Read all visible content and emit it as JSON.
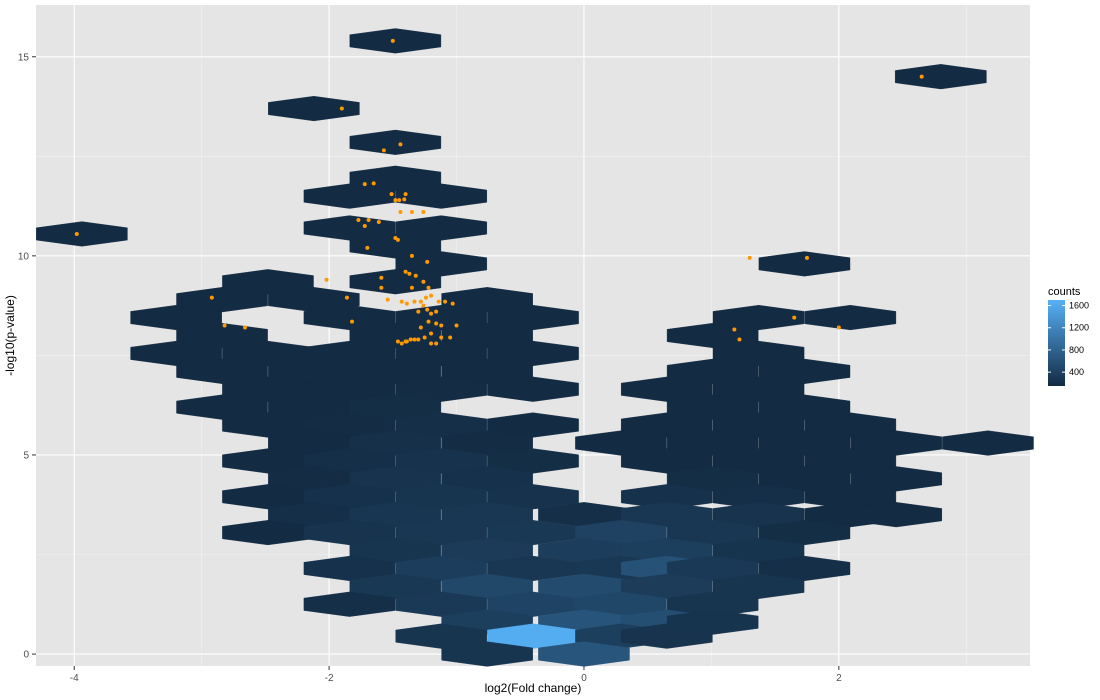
{
  "chart_data": {
    "type": "hexbin-scatter",
    "title": "",
    "xlabel": "log2(Fold change)",
    "ylabel": "-log10(p-value)",
    "xlim": [
      -4.3,
      3.5
    ],
    "ylim": [
      -0.3,
      16.3
    ],
    "x_ticks": [
      -4,
      -2,
      0,
      2
    ],
    "x_tick_labels": [
      "-4",
      "-2",
      "0",
      "2"
    ],
    "y_ticks": [
      0,
      5,
      10,
      15
    ],
    "y_tick_labels": [
      "0",
      "5",
      "10",
      "15"
    ],
    "hex_width": 0.715,
    "hex_height": 0.62,
    "grid": true,
    "background_color": "#e5e5e5",
    "legend": {
      "title": "counts",
      "position": "right",
      "range": [
        150,
        1700
      ],
      "breaks": [
        400,
        800,
        1200,
        1600
      ],
      "break_labels": [
        "400",
        "800",
        "1200",
        "1600"
      ],
      "color_low": "#132b43",
      "color_high": "#56b1f7"
    },
    "points_color": "#ff9900",
    "hexes": [
      {
        "x": -1.48,
        "y": 15.4,
        "count": 1
      },
      {
        "x": 2.8,
        "y": 14.5,
        "count": 1
      },
      {
        "x": -2.12,
        "y": 13.7,
        "count": 1
      },
      {
        "x": -1.48,
        "y": 12.85,
        "count": 3
      },
      {
        "x": -1.48,
        "y": 11.95,
        "count": 4
      },
      {
        "x": -1.84,
        "y": 11.5,
        "count": 8
      },
      {
        "x": -1.12,
        "y": 11.5,
        "count": 9
      },
      {
        "x": -1.84,
        "y": 10.7,
        "count": 7
      },
      {
        "x": -1.12,
        "y": 10.7,
        "count": 5
      },
      {
        "x": -3.94,
        "y": 10.55,
        "count": 1
      },
      {
        "x": -1.48,
        "y": 10.25,
        "count": 6
      },
      {
        "x": -1.12,
        "y": 9.8,
        "count": 10
      },
      {
        "x": 1.73,
        "y": 9.8,
        "count": 2
      },
      {
        "x": -2.48,
        "y": 9.35,
        "count": 5
      },
      {
        "x": -1.48,
        "y": 9.35,
        "count": 25
      },
      {
        "x": -2.84,
        "y": 8.9,
        "count": 4
      },
      {
        "x": -2.12,
        "y": 8.9,
        "count": 10
      },
      {
        "x": -0.76,
        "y": 8.9,
        "count": 18
      },
      {
        "x": -3.2,
        "y": 8.45,
        "count": 8
      },
      {
        "x": -1.84,
        "y": 8.45,
        "count": 30
      },
      {
        "x": -1.12,
        "y": 8.45,
        "count": 40
      },
      {
        "x": -0.4,
        "y": 8.45,
        "count": 15
      },
      {
        "x": 1.37,
        "y": 8.45,
        "count": 6
      },
      {
        "x": 2.09,
        "y": 8.45,
        "count": 4
      },
      {
        "x": -2.84,
        "y": 8.0,
        "count": 20
      },
      {
        "x": -1.48,
        "y": 8.0,
        "count": 60
      },
      {
        "x": -0.76,
        "y": 8.0,
        "count": 50
      },
      {
        "x": 1.01,
        "y": 8.0,
        "count": 12
      },
      {
        "x": -3.2,
        "y": 7.55,
        "count": 30
      },
      {
        "x": -2.48,
        "y": 7.55,
        "count": 60
      },
      {
        "x": -1.84,
        "y": 7.55,
        "count": 100
      },
      {
        "x": -1.12,
        "y": 7.55,
        "count": 110
      },
      {
        "x": -0.4,
        "y": 7.55,
        "count": 80
      },
      {
        "x": 1.37,
        "y": 7.55,
        "count": 30
      },
      {
        "x": -2.84,
        "y": 7.1,
        "count": 80
      },
      {
        "x": -2.12,
        "y": 7.1,
        "count": 120
      },
      {
        "x": -1.48,
        "y": 7.1,
        "count": 150
      },
      {
        "x": -0.76,
        "y": 7.1,
        "count": 110
      },
      {
        "x": 1.01,
        "y": 7.1,
        "count": 40
      },
      {
        "x": 1.73,
        "y": 7.1,
        "count": 30
      },
      {
        "x": -2.48,
        "y": 6.65,
        "count": 90
      },
      {
        "x": -1.84,
        "y": 6.65,
        "count": 150
      },
      {
        "x": -1.12,
        "y": 6.65,
        "count": 170
      },
      {
        "x": -0.4,
        "y": 6.65,
        "count": 100
      },
      {
        "x": 0.65,
        "y": 6.65,
        "count": 60
      },
      {
        "x": 1.37,
        "y": 6.65,
        "count": 70
      },
      {
        "x": -2.84,
        "y": 6.2,
        "count": 60
      },
      {
        "x": -2.12,
        "y": 6.2,
        "count": 130
      },
      {
        "x": -1.48,
        "y": 6.2,
        "count": 180
      },
      {
        "x": 1.01,
        "y": 6.2,
        "count": 80
      },
      {
        "x": 1.73,
        "y": 6.2,
        "count": 60
      },
      {
        "x": -2.48,
        "y": 5.75,
        "count": 100
      },
      {
        "x": -1.84,
        "y": 5.75,
        "count": 170
      },
      {
        "x": -1.12,
        "y": 5.75,
        "count": 200
      },
      {
        "x": -0.4,
        "y": 5.75,
        "count": 120
      },
      {
        "x": 0.65,
        "y": 5.75,
        "count": 80
      },
      {
        "x": 1.37,
        "y": 5.75,
        "count": 100
      },
      {
        "x": 2.09,
        "y": 5.75,
        "count": 50
      },
      {
        "x": -2.12,
        "y": 5.3,
        "count": 140
      },
      {
        "x": -1.48,
        "y": 5.3,
        "count": 210
      },
      {
        "x": -0.76,
        "y": 5.3,
        "count": 170
      },
      {
        "x": 0.29,
        "y": 5.3,
        "count": 60
      },
      {
        "x": 1.01,
        "y": 5.3,
        "count": 120
      },
      {
        "x": 1.73,
        "y": 5.3,
        "count": 90
      },
      {
        "x": 2.45,
        "y": 5.3,
        "count": 40
      },
      {
        "x": 3.17,
        "y": 5.3,
        "count": 20
      },
      {
        "x": -2.48,
        "y": 4.85,
        "count": 120
      },
      {
        "x": -1.84,
        "y": 4.85,
        "count": 200
      },
      {
        "x": -1.12,
        "y": 4.85,
        "count": 230
      },
      {
        "x": -0.4,
        "y": 4.85,
        "count": 180
      },
      {
        "x": 0.65,
        "y": 4.85,
        "count": 140
      },
      {
        "x": 1.37,
        "y": 4.85,
        "count": 150
      },
      {
        "x": 2.09,
        "y": 4.85,
        "count": 80
      },
      {
        "x": -2.12,
        "y": 4.4,
        "count": 170
      },
      {
        "x": -1.48,
        "y": 4.4,
        "count": 240
      },
      {
        "x": -0.76,
        "y": 4.4,
        "count": 220
      },
      {
        "x": 1.01,
        "y": 4.4,
        "count": 180
      },
      {
        "x": 1.73,
        "y": 4.4,
        "count": 130
      },
      {
        "x": 2.45,
        "y": 4.4,
        "count": 60
      },
      {
        "x": -2.48,
        "y": 3.95,
        "count": 140
      },
      {
        "x": -1.84,
        "y": 3.95,
        "count": 220
      },
      {
        "x": -1.12,
        "y": 3.95,
        "count": 260
      },
      {
        "x": -0.4,
        "y": 3.95,
        "count": 230
      },
      {
        "x": 0.65,
        "y": 3.95,
        "count": 220
      },
      {
        "x": 1.37,
        "y": 3.95,
        "count": 200
      },
      {
        "x": 2.09,
        "y": 3.95,
        "count": 110
      },
      {
        "x": -2.12,
        "y": 3.5,
        "count": 200
      },
      {
        "x": -1.48,
        "y": 3.5,
        "count": 270
      },
      {
        "x": -0.76,
        "y": 3.5,
        "count": 280
      },
      {
        "x": 0.0,
        "y": 3.5,
        "count": 200
      },
      {
        "x": 0.65,
        "y": 3.5,
        "count": 280
      },
      {
        "x": 1.37,
        "y": 3.5,
        "count": 240
      },
      {
        "x": 2.09,
        "y": 3.5,
        "count": 140
      },
      {
        "x": 2.45,
        "y": 3.5,
        "count": 60
      },
      {
        "x": -2.48,
        "y": 3.05,
        "count": 150
      },
      {
        "x": -1.84,
        "y": 3.05,
        "count": 240
      },
      {
        "x": -1.12,
        "y": 3.05,
        "count": 290
      },
      {
        "x": -0.4,
        "y": 3.05,
        "count": 300
      },
      {
        "x": 0.29,
        "y": 3.05,
        "count": 420
      },
      {
        "x": 1.01,
        "y": 3.05,
        "count": 290
      },
      {
        "x": 1.73,
        "y": 3.05,
        "count": 180
      },
      {
        "x": -1.48,
        "y": 2.6,
        "count": 260
      },
      {
        "x": -0.76,
        "y": 2.6,
        "count": 330
      },
      {
        "x": 0.0,
        "y": 2.6,
        "count": 360
      },
      {
        "x": 0.65,
        "y": 2.6,
        "count": 380
      },
      {
        "x": 1.37,
        "y": 2.6,
        "count": 250
      },
      {
        "x": -1.84,
        "y": 2.15,
        "count": 220
      },
      {
        "x": -1.12,
        "y": 2.15,
        "count": 360
      },
      {
        "x": -0.4,
        "y": 2.15,
        "count": 280
      },
      {
        "x": 0.29,
        "y": 2.15,
        "count": 300
      },
      {
        "x": 0.65,
        "y": 2.15,
        "count": 600
      },
      {
        "x": 1.01,
        "y": 2.15,
        "count": 310
      },
      {
        "x": 1.73,
        "y": 2.15,
        "count": 200
      },
      {
        "x": -1.48,
        "y": 1.7,
        "count": 300
      },
      {
        "x": -0.76,
        "y": 1.7,
        "count": 480
      },
      {
        "x": 0.0,
        "y": 1.7,
        "count": 520
      },
      {
        "x": 0.65,
        "y": 1.7,
        "count": 350
      },
      {
        "x": 1.37,
        "y": 1.7,
        "count": 260
      },
      {
        "x": -1.84,
        "y": 1.25,
        "count": 200
      },
      {
        "x": -1.12,
        "y": 1.25,
        "count": 310
      },
      {
        "x": -0.4,
        "y": 1.25,
        "count": 430
      },
      {
        "x": 0.29,
        "y": 1.25,
        "count": 470
      },
      {
        "x": 1.01,
        "y": 1.25,
        "count": 260
      },
      {
        "x": -0.76,
        "y": 0.8,
        "count": 380
      },
      {
        "x": 0.0,
        "y": 0.8,
        "count": 620
      },
      {
        "x": 0.65,
        "y": 0.8,
        "count": 560
      },
      {
        "x": 1.01,
        "y": 0.8,
        "count": 250
      },
      {
        "x": -1.12,
        "y": 0.45,
        "count": 260
      },
      {
        "x": -0.4,
        "y": 0.45,
        "count": 1650
      },
      {
        "x": 0.29,
        "y": 0.45,
        "count": 380
      },
      {
        "x": 0.65,
        "y": 0.45,
        "count": 240
      },
      {
        "x": -0.76,
        "y": 0.0,
        "count": 260
      },
      {
        "x": 0.0,
        "y": 0.0,
        "count": 640
      }
    ],
    "points": [
      {
        "x": -1.5,
        "y": 15.4
      },
      {
        "x": 2.65,
        "y": 14.5
      },
      {
        "x": -1.9,
        "y": 13.7
      },
      {
        "x": -1.57,
        "y": 12.65
      },
      {
        "x": -1.44,
        "y": 12.8
      },
      {
        "x": -1.72,
        "y": 11.8
      },
      {
        "x": -1.65,
        "y": 11.82
      },
      {
        "x": -1.51,
        "y": 11.55
      },
      {
        "x": -1.45,
        "y": 11.4
      },
      {
        "x": -1.41,
        "y": 11.42
      },
      {
        "x": -1.4,
        "y": 11.55
      },
      {
        "x": -1.48,
        "y": 11.4
      },
      {
        "x": -1.44,
        "y": 11.1
      },
      {
        "x": -1.35,
        "y": 11.1
      },
      {
        "x": -1.26,
        "y": 11.1
      },
      {
        "x": -1.77,
        "y": 10.9
      },
      {
        "x": -1.69,
        "y": 10.9
      },
      {
        "x": -1.61,
        "y": 10.85
      },
      {
        "x": -1.72,
        "y": 10.75
      },
      {
        "x": -1.48,
        "y": 10.45
      },
      {
        "x": -1.46,
        "y": 10.4
      },
      {
        "x": -1.7,
        "y": 10.2
      },
      {
        "x": -1.35,
        "y": 10.0
      },
      {
        "x": -1.23,
        "y": 9.85
      },
      {
        "x": -1.4,
        "y": 9.6
      },
      {
        "x": -1.37,
        "y": 9.55
      },
      {
        "x": -1.32,
        "y": 9.5
      },
      {
        "x": -1.26,
        "y": 9.35
      },
      {
        "x": -1.22,
        "y": 9.2
      },
      {
        "x": -1.35,
        "y": 9.2
      },
      {
        "x": -1.2,
        "y": 9.0
      },
      {
        "x": -1.24,
        "y": 8.95
      },
      {
        "x": -1.28,
        "y": 8.85
      },
      {
        "x": -1.33,
        "y": 8.85
      },
      {
        "x": -1.14,
        "y": 8.85
      },
      {
        "x": -1.09,
        "y": 8.85
      },
      {
        "x": -1.03,
        "y": 8.8
      },
      {
        "x": -1.26,
        "y": 8.75
      },
      {
        "x": -1.23,
        "y": 8.65
      },
      {
        "x": -1.3,
        "y": 8.6
      },
      {
        "x": -1.16,
        "y": 8.6
      },
      {
        "x": -1.2,
        "y": 8.55
      },
      {
        "x": -1.22,
        "y": 8.35
      },
      {
        "x": -1.16,
        "y": 8.3
      },
      {
        "x": -1.12,
        "y": 8.25
      },
      {
        "x": -1.0,
        "y": 8.25
      },
      {
        "x": -1.28,
        "y": 8.2
      },
      {
        "x": -1.2,
        "y": 8.05
      },
      {
        "x": -1.25,
        "y": 7.95
      },
      {
        "x": -1.12,
        "y": 7.95
      },
      {
        "x": -1.05,
        "y": 7.95
      },
      {
        "x": -1.3,
        "y": 7.9
      },
      {
        "x": -1.36,
        "y": 7.9
      },
      {
        "x": -1.4,
        "y": 7.85
      },
      {
        "x": -1.43,
        "y": 7.8
      },
      {
        "x": -1.2,
        "y": 7.8
      },
      {
        "x": -1.16,
        "y": 7.8
      },
      {
        "x": -1.33,
        "y": 7.9
      },
      {
        "x": -1.39,
        "y": 7.85
      },
      {
        "x": -1.46,
        "y": 7.85
      },
      {
        "x": -1.59,
        "y": 9.2
      },
      {
        "x": -1.54,
        "y": 8.9
      },
      {
        "x": -1.43,
        "y": 8.85
      },
      {
        "x": -1.39,
        "y": 8.8
      },
      {
        "x": -1.59,
        "y": 9.45
      },
      {
        "x": -1.82,
        "y": 8.35
      },
      {
        "x": -1.86,
        "y": 8.95
      },
      {
        "x": -2.02,
        "y": 9.4
      },
      {
        "x": -2.92,
        "y": 8.95
      },
      {
        "x": -2.82,
        "y": 8.25
      },
      {
        "x": -2.66,
        "y": 8.2
      },
      {
        "x": 1.3,
        "y": 9.95
      },
      {
        "x": 1.75,
        "y": 9.95
      },
      {
        "x": 1.65,
        "y": 8.45
      },
      {
        "x": 2.0,
        "y": 8.2
      },
      {
        "x": 1.18,
        "y": 8.15
      },
      {
        "x": 1.22,
        "y": 7.9
      },
      {
        "x": -3.98,
        "y": 10.55
      }
    ]
  }
}
